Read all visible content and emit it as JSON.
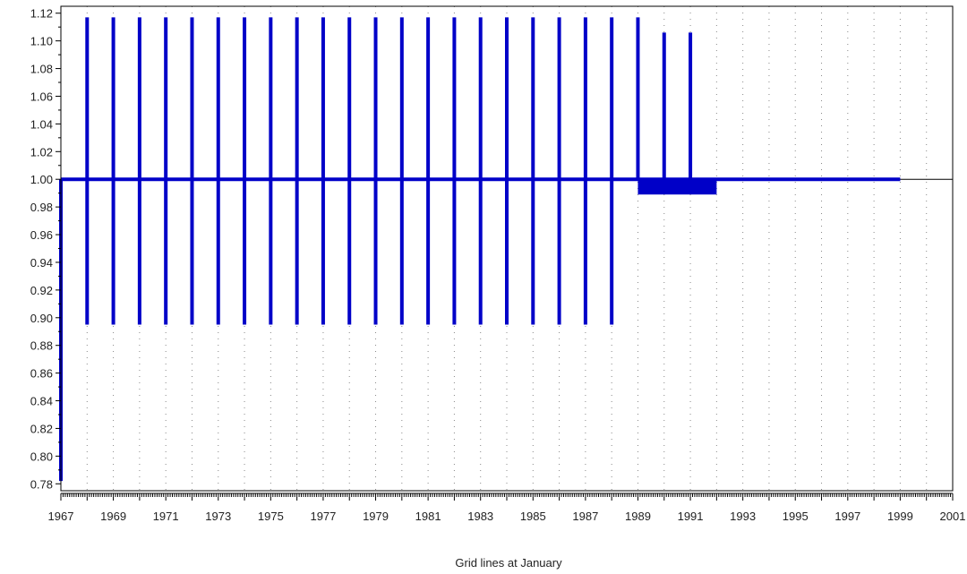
{
  "chart_data": {
    "type": "bar",
    "title": "",
    "xlabel": "Grid lines at January",
    "ylabel": "",
    "baseline": 1.0,
    "xlim": [
      1967,
      2001
    ],
    "ylim": [
      0.775,
      1.125
    ],
    "x_ticks": [
      "1967",
      "1969",
      "1971",
      "1973",
      "1975",
      "1977",
      "1979",
      "1981",
      "1983",
      "1985",
      "1987",
      "1989",
      "1991",
      "1993",
      "1995",
      "1997",
      "1999",
      "2001"
    ],
    "y_ticks": [
      "0.78",
      "0.80",
      "0.82",
      "0.84",
      "0.86",
      "0.88",
      "0.90",
      "0.92",
      "0.94",
      "0.96",
      "0.98",
      "1.00",
      "1.02",
      "1.04",
      "1.06",
      "1.08",
      "1.10",
      "1.12"
    ],
    "grid": "dotted vertical lines (January of each year)",
    "up_spikes": [
      {
        "x": 1968,
        "y": 1.117
      },
      {
        "x": 1969,
        "y": 1.117
      },
      {
        "x": 1970,
        "y": 1.117
      },
      {
        "x": 1971,
        "y": 1.117
      },
      {
        "x": 1972,
        "y": 1.117
      },
      {
        "x": 1973,
        "y": 1.117
      },
      {
        "x": 1974,
        "y": 1.117
      },
      {
        "x": 1975,
        "y": 1.117
      },
      {
        "x": 1976,
        "y": 1.117
      },
      {
        "x": 1977,
        "y": 1.117
      },
      {
        "x": 1978,
        "y": 1.117
      },
      {
        "x": 1979,
        "y": 1.117
      },
      {
        "x": 1980,
        "y": 1.117
      },
      {
        "x": 1981,
        "y": 1.117
      },
      {
        "x": 1982,
        "y": 1.117
      },
      {
        "x": 1983,
        "y": 1.117
      },
      {
        "x": 1984,
        "y": 1.117
      },
      {
        "x": 1985,
        "y": 1.117
      },
      {
        "x": 1986,
        "y": 1.117
      },
      {
        "x": 1987,
        "y": 1.117
      },
      {
        "x": 1988,
        "y": 1.117
      },
      {
        "x": 1989,
        "y": 1.117
      },
      {
        "x": 1990,
        "y": 1.106
      },
      {
        "x": 1991,
        "y": 1.106
      }
    ],
    "down_spikes": [
      {
        "x": 1967,
        "y": 0.782
      },
      {
        "x": 1968,
        "y": 0.895
      },
      {
        "x": 1969,
        "y": 0.895
      },
      {
        "x": 1970,
        "y": 0.895
      },
      {
        "x": 1971,
        "y": 0.895
      },
      {
        "x": 1972,
        "y": 0.895
      },
      {
        "x": 1973,
        "y": 0.895
      },
      {
        "x": 1974,
        "y": 0.895
      },
      {
        "x": 1975,
        "y": 0.895
      },
      {
        "x": 1976,
        "y": 0.895
      },
      {
        "x": 1977,
        "y": 0.895
      },
      {
        "x": 1978,
        "y": 0.895
      },
      {
        "x": 1979,
        "y": 0.895
      },
      {
        "x": 1980,
        "y": 0.895
      },
      {
        "x": 1981,
        "y": 0.895
      },
      {
        "x": 1982,
        "y": 0.895
      },
      {
        "x": 1983,
        "y": 0.895
      },
      {
        "x": 1984,
        "y": 0.895
      },
      {
        "x": 1985,
        "y": 0.895
      },
      {
        "x": 1986,
        "y": 0.895
      },
      {
        "x": 1987,
        "y": 0.895
      },
      {
        "x": 1988,
        "y": 0.895
      }
    ],
    "blocks": [
      {
        "x_start": 1989,
        "x_end": 1992,
        "y_low": 0.989,
        "y_high": 1.0
      }
    ],
    "baseline_line": {
      "x_start": 1967,
      "x_end": 1999
    },
    "colors": {
      "series": "#0000c8",
      "axis": "#000000",
      "grid": "#888888",
      "reference_line": "#000000"
    }
  }
}
